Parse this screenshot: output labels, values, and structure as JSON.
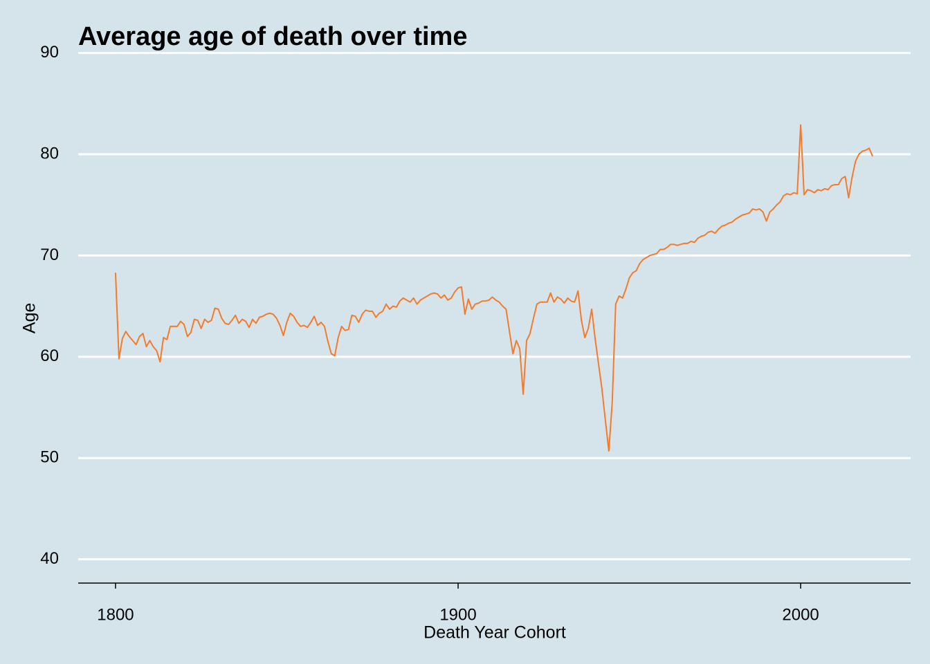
{
  "chart_data": {
    "type": "line",
    "title": "Average age of death over time",
    "x_label": "Death Year Cohort",
    "y_label": "Age",
    "x": [
      1800,
      1801,
      1802,
      1803,
      1804,
      1805,
      1806,
      1807,
      1808,
      1809,
      1810,
      1811,
      1812,
      1813,
      1814,
      1815,
      1816,
      1817,
      1818,
      1819,
      1820,
      1821,
      1822,
      1823,
      1824,
      1825,
      1826,
      1827,
      1828,
      1829,
      1830,
      1831,
      1832,
      1833,
      1834,
      1835,
      1836,
      1837,
      1838,
      1839,
      1840,
      1841,
      1842,
      1843,
      1844,
      1845,
      1846,
      1847,
      1848,
      1849,
      1850,
      1851,
      1852,
      1853,
      1854,
      1855,
      1856,
      1857,
      1858,
      1859,
      1860,
      1861,
      1862,
      1863,
      1864,
      1865,
      1866,
      1867,
      1868,
      1869,
      1870,
      1871,
      1872,
      1873,
      1874,
      1875,
      1876,
      1877,
      1878,
      1879,
      1880,
      1881,
      1882,
      1883,
      1884,
      1885,
      1886,
      1887,
      1888,
      1889,
      1890,
      1891,
      1892,
      1893,
      1894,
      1895,
      1896,
      1897,
      1898,
      1899,
      1900,
      1901,
      1902,
      1903,
      1904,
      1905,
      1906,
      1907,
      1908,
      1909,
      1910,
      1911,
      1912,
      1913,
      1914,
      1915,
      1916,
      1917,
      1918,
      1919,
      1920,
      1921,
      1922,
      1923,
      1924,
      1925,
      1926,
      1927,
      1928,
      1929,
      1930,
      1931,
      1932,
      1933,
      1934,
      1935,
      1936,
      1937,
      1938,
      1939,
      1940,
      1941,
      1942,
      1943,
      1944,
      1945,
      1946,
      1947,
      1948,
      1949,
      1950,
      1951,
      1952,
      1953,
      1954,
      1955,
      1956,
      1957,
      1958,
      1959,
      1960,
      1961,
      1962,
      1963,
      1964,
      1965,
      1966,
      1967,
      1968,
      1969,
      1970,
      1971,
      1972,
      1973,
      1974,
      1975,
      1976,
      1977,
      1978,
      1979,
      1980,
      1981,
      1982,
      1983,
      1984,
      1985,
      1986,
      1987,
      1988,
      1989,
      1990,
      1991,
      1992,
      1993,
      1994,
      1995,
      1996,
      1997,
      1998,
      1999,
      2000,
      2001,
      2002,
      2003,
      2004,
      2005,
      2006,
      2007,
      2008,
      2009,
      2010,
      2011,
      2012,
      2013,
      2014,
      2015,
      2016,
      2017,
      2018,
      2019,
      2020,
      2021
    ],
    "series": [
      {
        "name": "Age",
        "color": "#f37b2b",
        "values": [
          68.3,
          59.8,
          61.8,
          62.5,
          62.0,
          61.6,
          61.2,
          62.0,
          62.3,
          61.0,
          61.6,
          61.0,
          60.6,
          59.5,
          61.9,
          61.7,
          63.0,
          63.0,
          63.0,
          63.5,
          63.2,
          62.0,
          62.4,
          63.7,
          63.6,
          62.8,
          63.7,
          63.4,
          63.6,
          64.8,
          64.7,
          63.8,
          63.3,
          63.2,
          63.6,
          64.1,
          63.3,
          63.7,
          63.5,
          62.9,
          63.7,
          63.3,
          63.9,
          64.0,
          64.2,
          64.3,
          64.2,
          63.8,
          63.1,
          62.1,
          63.4,
          64.3,
          64.0,
          63.4,
          63.0,
          63.1,
          62.9,
          63.4,
          64.0,
          63.1,
          63.4,
          63.0,
          61.5,
          60.3,
          60.1,
          61.9,
          63.0,
          62.6,
          62.7,
          64.1,
          64.0,
          63.4,
          64.2,
          64.6,
          64.5,
          64.5,
          63.9,
          64.3,
          64.5,
          65.2,
          64.7,
          65.0,
          64.9,
          65.5,
          65.8,
          65.6,
          65.4,
          65.8,
          65.2,
          65.6,
          65.8,
          66.0,
          66.2,
          66.3,
          66.2,
          65.8,
          66.1,
          65.6,
          65.8,
          66.4,
          66.8,
          66.9,
          64.2,
          65.7,
          64.7,
          65.2,
          65.3,
          65.5,
          65.5,
          65.6,
          65.9,
          65.6,
          65.4,
          65.0,
          64.7,
          62.5,
          60.3,
          61.6,
          60.8,
          56.3,
          61.6,
          62.3,
          63.8,
          65.2,
          65.4,
          65.4,
          65.4,
          66.3,
          65.4,
          65.9,
          65.7,
          65.3,
          65.8,
          65.5,
          65.4,
          66.5,
          63.6,
          61.9,
          62.8,
          64.7,
          61.8,
          59.3,
          56.8,
          53.7,
          50.7,
          55.5,
          65.2,
          66.0,
          65.8,
          66.7,
          67.8,
          68.3,
          68.5,
          69.2,
          69.6,
          69.8,
          70.0,
          70.1,
          70.2,
          70.6,
          70.6,
          70.8,
          71.1,
          71.1,
          71.0,
          71.1,
          71.2,
          71.2,
          71.4,
          71.3,
          71.7,
          71.9,
          72.0,
          72.3,
          72.4,
          72.2,
          72.6,
          72.9,
          73.0,
          73.2,
          73.3,
          73.6,
          73.8,
          74.0,
          74.1,
          74.2,
          74.6,
          74.5,
          74.6,
          74.3,
          73.4,
          74.3,
          74.6,
          75.0,
          75.3,
          75.9,
          76.1,
          76.0,
          76.2,
          76.1,
          82.9,
          76.0,
          76.5,
          76.4,
          76.2,
          76.5,
          76.4,
          76.6,
          76.5,
          76.9,
          77.0,
          77.0,
          77.6,
          77.8,
          75.7,
          77.7,
          79.3,
          80.0,
          80.3,
          80.4,
          80.6,
          79.8
        ]
      }
    ],
    "xlim": [
      1789.1,
      2032.1
    ],
    "xticks": [
      1800,
      1900,
      2000
    ],
    "ylim": [
      37.65,
      91.0
    ],
    "yticks": [
      40,
      50,
      60,
      70,
      80,
      90
    ],
    "grid": true
  }
}
